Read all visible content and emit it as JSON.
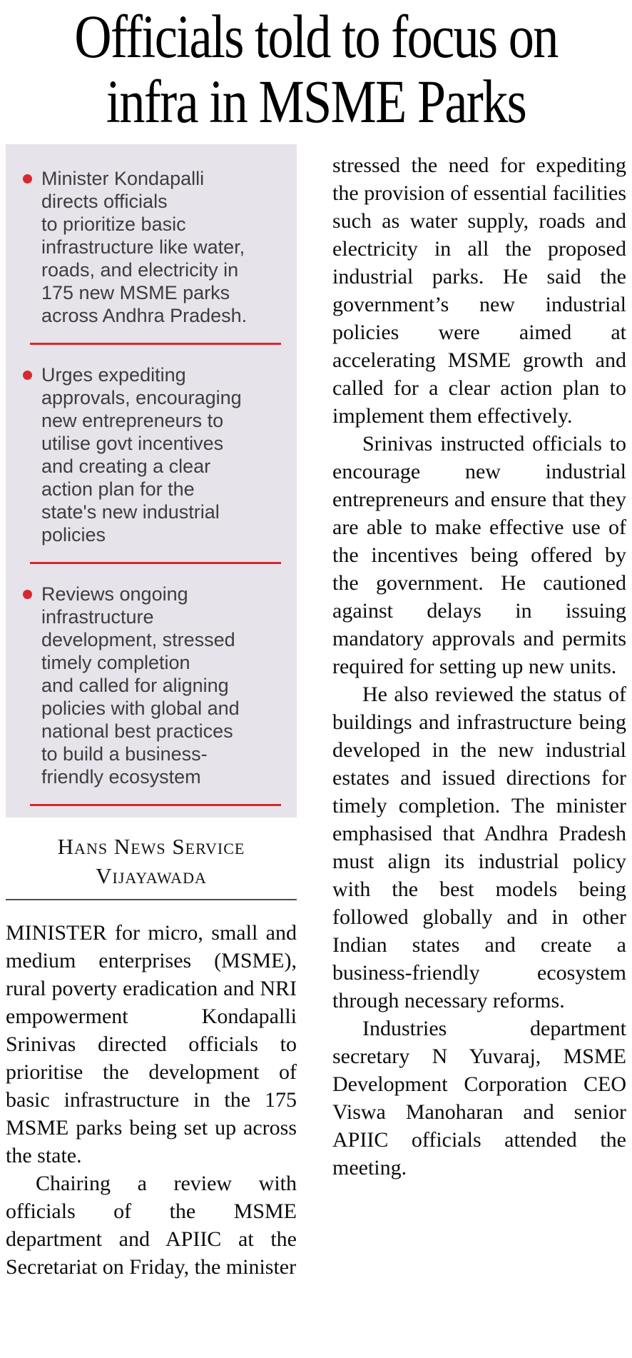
{
  "headline": {
    "line1": "Officials told to focus on",
    "line2": "infra in MSME Parks"
  },
  "colors": {
    "accent_red": "#d9282d",
    "box_background": "#e6e3ea"
  },
  "highlights": {
    "bullets": [
      "Minister Kondapalli\ndirects officials\nto prioritize basic\ninfrastructure like water,\nroads, and electricity in\n175 new MSME parks\nacross Andhra Pradesh.",
      "Urges expediting\napprovals, encouraging\nnew entrepreneurs to\nutilise govt incentives\nand creating a clear\naction plan for the\nstate's new industrial\npolicies",
      "Reviews ongoing\ninfrastructure\ndevelopment, stressed\ntimely completion\nand called for aligning\npolicies with global and\nnational best practices\nto build a business-\nfriendly ecosystem"
    ]
  },
  "byline": {
    "agency": "Hans News Service",
    "location": "Vijayawada"
  },
  "article": {
    "left_paragraphs": [
      "MINISTER for micro, small and medium enterprises (MSME), rural poverty eradication and NRI empowerment Kondapalli Srinivas directed officials to prioritise the development of basic infrastructure in the 175 MSME parks being set up across the state.",
      "Chairing a review with officials of the MSME department and APIIC at the Secretariat on Friday, the minister"
    ],
    "right_paragraphs": [
      "stressed the need for expediting the provision of essential facilities such as water supply, roads and electricity in all the proposed industrial parks. He said the government’s new industrial policies were aimed at accelerating MSME growth and called for a clear action plan to implement them effectively.",
      "Srinivas instructed officials to encourage new industrial entrepreneurs and ensure that they are able to make effective use of the incentives being offered by the government. He cautioned against delays in issuing mandatory approvals and permits required for setting up new units.",
      "He also reviewed the status of buildings and infrastructure being developed in the new industrial estates and issued directions for timely completion. The minister emphasised that Andhra Pradesh must align its industrial policy with the best models being followed globally and in other Indian states and create a business-friendly ecosystem through necessary reforms.",
      "Industries department secretary N Yuvaraj, MSME Development Corporation CEO Viswa Manoharan and senior APIIC officials attended the meeting."
    ]
  }
}
